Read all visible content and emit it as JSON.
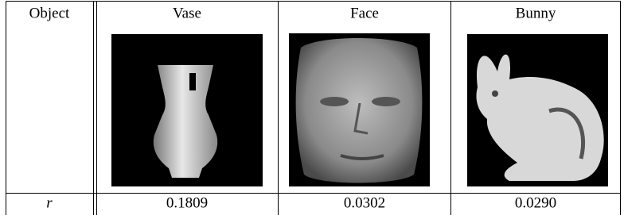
{
  "table": {
    "header": [
      "Object",
      "Vase",
      "Face",
      "Bunny"
    ],
    "rows": [
      [
        "r",
        "0.1809",
        "0.0302",
        "0.0290"
      ]
    ]
  }
}
